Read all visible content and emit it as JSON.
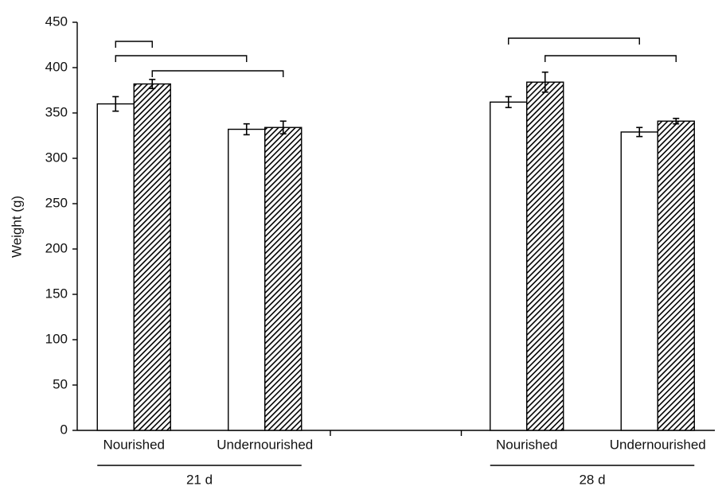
{
  "chart_data": {
    "type": "bar",
    "ylabel": "Weight (g)",
    "categories": [
      "Nourished",
      "Undernourished",
      null,
      "Nourished",
      "Undernourished"
    ],
    "groups": [
      {
        "label": "21 d",
        "span": [
          0,
          1
        ]
      },
      {
        "label": "28 d",
        "span": [
          3,
          4
        ]
      }
    ],
    "series": [
      {
        "color": "#ffffff",
        "values": [
          360,
          332,
          null,
          362,
          329
        ],
        "errors": [
          8,
          6,
          null,
          6,
          5
        ]
      },
      {
        "color": "#000000",
        "hatch": true,
        "values": [
          382,
          334,
          null,
          384,
          341
        ],
        "errors": [
          5,
          7,
          null,
          11,
          3
        ]
      }
    ],
    "ylim": [
      0,
      450
    ],
    "yticks": [
      0,
      50,
      100,
      150,
      200,
      250,
      300,
      350,
      400,
      450
    ]
  }
}
